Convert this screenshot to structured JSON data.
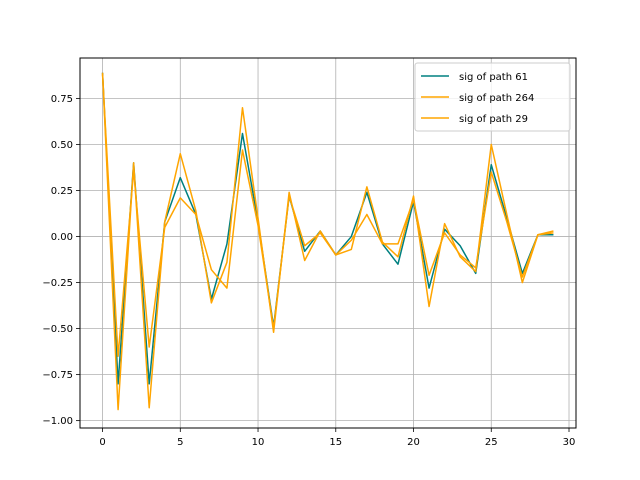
{
  "chart_data": {
    "type": "line",
    "title": "",
    "xlabel": "",
    "ylabel": "",
    "xlim": [
      -1.45,
      30.45
    ],
    "ylim": [
      -1.04,
      0.97
    ],
    "xticks": [
      0,
      5,
      10,
      15,
      20,
      25,
      30
    ],
    "yticks": [
      -1.0,
      -0.75,
      -0.5,
      -0.25,
      0.0,
      0.25,
      0.5,
      0.75
    ],
    "ytick_labels": [
      "−1.00",
      "−0.75",
      "−0.50",
      "−0.25",
      "0.00",
      "0.25",
      "0.50",
      "0.75"
    ],
    "grid": true,
    "legend_position": "top-right",
    "x": [
      0,
      1,
      2,
      3,
      4,
      5,
      6,
      7,
      8,
      9,
      10,
      11,
      12,
      13,
      14,
      15,
      16,
      17,
      18,
      19,
      20,
      21,
      22,
      23,
      24,
      25,
      26,
      27,
      28,
      29
    ],
    "series": [
      {
        "name": "sig of path 61",
        "color": "#008080",
        "values": [
          0.89,
          -0.8,
          0.4,
          -0.8,
          0.08,
          0.32,
          0.12,
          -0.34,
          -0.04,
          0.56,
          0.08,
          -0.49,
          0.22,
          -0.08,
          0.03,
          -0.1,
          0.0,
          0.24,
          -0.04,
          -0.15,
          0.19,
          -0.28,
          0.04,
          -0.05,
          -0.2,
          0.39,
          0.1,
          -0.2,
          0.01,
          0.01
        ]
      },
      {
        "name": "sig of path 264",
        "color": "#FFA500",
        "values": [
          0.89,
          -0.94,
          0.4,
          -0.93,
          0.08,
          0.45,
          0.14,
          -0.36,
          -0.14,
          0.7,
          0.1,
          -0.52,
          0.24,
          -0.13,
          0.03,
          -0.1,
          -0.07,
          0.27,
          -0.03,
          -0.11,
          0.22,
          -0.38,
          0.07,
          -0.11,
          -0.19,
          0.5,
          0.12,
          -0.25,
          0.01,
          0.03
        ]
      },
      {
        "name": "sig of path 29",
        "color": "#FFA500",
        "values": [
          0.88,
          -0.65,
          0.36,
          -0.6,
          0.05,
          0.21,
          0.12,
          -0.18,
          -0.28,
          0.47,
          0.06,
          -0.5,
          0.22,
          -0.05,
          0.02,
          -0.1,
          -0.02,
          0.12,
          -0.04,
          -0.04,
          0.2,
          -0.21,
          0.02,
          -0.1,
          -0.17,
          0.35,
          0.08,
          -0.22,
          0.01,
          0.02
        ]
      }
    ]
  }
}
